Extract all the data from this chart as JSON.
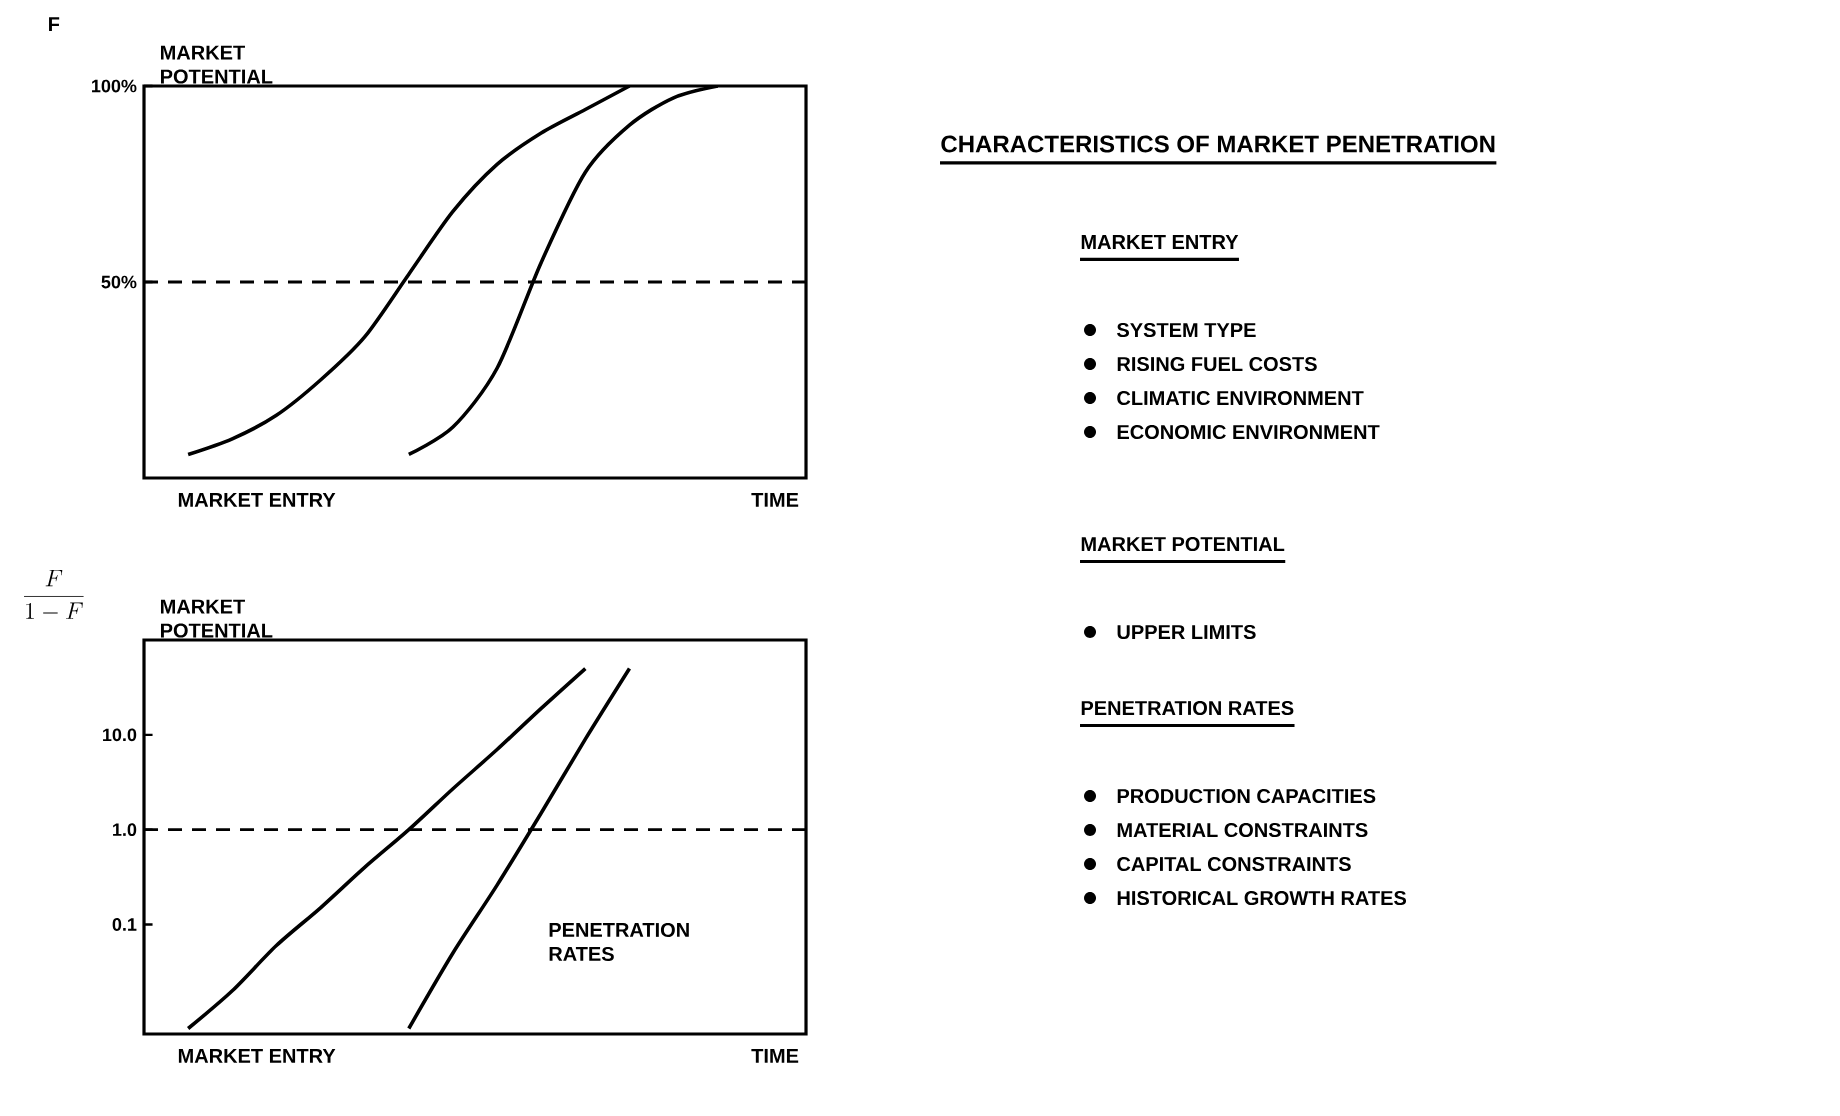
{
  "chart_data": [
    {
      "type": "line",
      "ylabel": "F",
      "xlabel": "TIME",
      "annotations": [
        "MARKET POTENTIAL",
        "MARKET ENTRY"
      ],
      "categories": [
        null,
        null,
        null,
        null,
        null,
        null,
        null,
        null,
        null,
        null,
        null,
        null,
        null,
        null,
        null,
        null
      ],
      "series": [
        {
          "color": "#000000",
          "values": [
            null,
            6,
            10,
            16,
            25,
            36,
            52,
            68,
            80,
            88,
            94,
            100,
            null,
            null,
            null,
            null
          ]
        },
        {
          "color": "#000000",
          "values": [
            null,
            null,
            null,
            null,
            null,
            null,
            6,
            13,
            28,
            55,
            78,
            90,
            97,
            100,
            null,
            null
          ]
        }
      ],
      "ylim": [
        0,
        100
      ],
      "yticks": [
        {
          "value": 50,
          "label": "50%"
        },
        {
          "value": 100,
          "label": "100%"
        }
      ],
      "ref_lines": [
        {
          "axis": "y",
          "value": 50,
          "line_style": "dashed"
        }
      ]
    },
    {
      "type": "line",
      "ylabel": "\\frac{F}{1-F}",
      "xlabel": "TIME",
      "annotations": [
        "MARKET POTENTIAL",
        "PENETRATION RATES",
        "MARKET ENTRY"
      ],
      "categories": [
        null,
        null,
        null,
        null,
        null,
        null,
        null,
        null,
        null,
        null,
        null,
        null,
        null,
        null,
        null,
        null
      ],
      "series": [
        {
          "color": "#000000",
          "values": [
            null,
            0.008,
            0.02,
            0.06,
            0.15,
            0.4,
            1,
            2.7,
            7,
            19,
            50,
            null,
            null,
            null,
            null,
            null
          ]
        },
        {
          "color": "#000000",
          "values": [
            null,
            null,
            null,
            null,
            null,
            null,
            0.008,
            0.05,
            0.26,
            1.5,
            9,
            50,
            null,
            null,
            null,
            null
          ]
        }
      ],
      "log": true,
      "ylim": [
        0.007,
        100
      ],
      "yticks": [
        {
          "value": 0.1,
          "label": "0.1"
        },
        {
          "value": 1,
          "label": "1.0"
        },
        {
          "value": 10,
          "label": "10.0"
        }
      ],
      "ref_lines": [
        {
          "axis": "y",
          "value": 1,
          "line_style": "dashed"
        }
      ]
    },
    {
      "type": "other",
      "title": "CHARACTERISTICS OF MARKET PENETRATION"
    },
    {
      "type": "other",
      "title": "MARKET ENTRY",
      "annotations": [
        "SYSTEM TYPE",
        "RISING FUEL COSTS",
        "CLIMATIC ENVIRONMENT",
        "ECONOMIC ENVIRONMENT"
      ]
    },
    {
      "type": "other",
      "title": "MARKET POTENTIAL",
      "annotations": [
        "UPPER LIMITS"
      ]
    },
    {
      "type": "other",
      "title": "PENETRATION RATES",
      "annotations": [
        "PRODUCTION CAPACITIES",
        "MATERIAL CONSTRAINTS",
        "CAPITAL CONSTRAINTS",
        "HISTORICAL GROWTH RATES"
      ]
    }
  ]
}
